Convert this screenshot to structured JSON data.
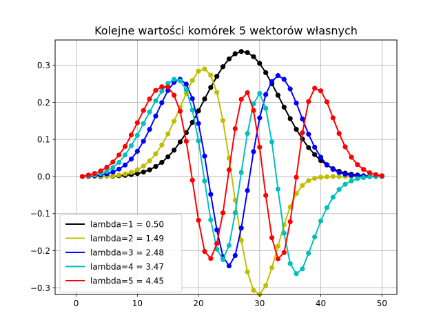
{
  "chart_data": {
    "type": "line",
    "title": "Kolejne wartości komórek 5 wektorów własnych",
    "xlabel": "",
    "ylabel": "",
    "xlim": [
      -3.45,
      52.45
    ],
    "ylim": [
      -0.318,
      0.368
    ],
    "xticks": [
      0,
      10,
      20,
      30,
      40,
      50
    ],
    "xtick_labels": [
      "0",
      "10",
      "20",
      "30",
      "40",
      "50"
    ],
    "yticks": [
      -0.3,
      -0.2,
      -0.1,
      0.0,
      0.1,
      0.2,
      0.3
    ],
    "ytick_labels": [
      "−0.3",
      "−0.2",
      "−0.1",
      "0.0",
      "0.1",
      "0.2",
      "0.3"
    ],
    "grid": true,
    "legend_position": "lower-left",
    "x": [
      1,
      2,
      3,
      4,
      5,
      6,
      7,
      8,
      9,
      10,
      11,
      12,
      13,
      14,
      15,
      16,
      17,
      18,
      19,
      20,
      21,
      22,
      23,
      24,
      25,
      26,
      27,
      28,
      29,
      30,
      31,
      32,
      33,
      34,
      35,
      36,
      37,
      38,
      39,
      40,
      41,
      42,
      43,
      44,
      45,
      46,
      47,
      48,
      49,
      50
    ],
    "series": [
      {
        "name": "lambda=1 = 0.50",
        "color": "#000000",
        "values": [
          0.0,
          0.0,
          0.0,
          0.0,
          0.001,
          0.001,
          0.002,
          0.003,
          0.005,
          0.008,
          0.012,
          0.018,
          0.027,
          0.038,
          0.053,
          0.071,
          0.093,
          0.118,
          0.146,
          0.177,
          0.209,
          0.24,
          0.27,
          0.296,
          0.317,
          0.331,
          0.337,
          0.334,
          0.323,
          0.305,
          0.28,
          0.25,
          0.219,
          0.187,
          0.156,
          0.127,
          0.101,
          0.078,
          0.059,
          0.043,
          0.031,
          0.021,
          0.014,
          0.009,
          0.006,
          0.004,
          0.002,
          0.001,
          0.0,
          0.0
        ]
      },
      {
        "name": "lambda=2 = 1.49",
        "color": "#bfbf00",
        "values": [
          0.0,
          0.0,
          0.0,
          0.001,
          0.001,
          0.002,
          0.004,
          0.007,
          0.011,
          0.018,
          0.028,
          0.042,
          0.061,
          0.085,
          0.115,
          0.149,
          0.186,
          0.224,
          0.259,
          0.284,
          0.29,
          0.273,
          0.227,
          0.151,
          0.05,
          -0.064,
          -0.172,
          -0.257,
          -0.307,
          -0.318,
          -0.294,
          -0.246,
          -0.188,
          -0.13,
          -0.082,
          -0.046,
          -0.024,
          -0.011,
          -0.005,
          -0.002,
          -0.001,
          0.0,
          0.0,
          0.0,
          0.0,
          0.0,
          0.0,
          0.0,
          0.0,
          0.0
        ],
        "raw_note": null
      },
      {
        "name": "lambda=3 = 2.48",
        "color": "#0000ff",
        "values": [
          0.0,
          0.001,
          0.002,
          0.004,
          0.007,
          0.012,
          0.02,
          0.031,
          0.047,
          0.068,
          0.095,
          0.127,
          0.163,
          0.199,
          0.232,
          0.254,
          0.262,
          0.249,
          0.21,
          0.143,
          0.055,
          -0.048,
          -0.144,
          -0.216,
          -0.241,
          -0.213,
          -0.139,
          -0.038,
          0.067,
          0.158,
          0.221,
          0.256,
          0.272,
          0.262,
          0.236,
          0.198,
          0.155,
          0.114,
          0.079,
          0.052,
          0.032,
          0.019,
          0.011,
          0.006,
          0.003,
          0.002,
          0.001,
          0.0,
          0.0,
          0.0
        ]
      },
      {
        "name": "lambda=4 = 3.47",
        "color": "#00bfbf",
        "values": [
          0.0,
          0.002,
          0.004,
          0.008,
          0.014,
          0.024,
          0.038,
          0.058,
          0.083,
          0.111,
          0.143,
          0.174,
          0.204,
          0.23,
          0.251,
          0.262,
          0.258,
          0.234,
          0.179,
          0.096,
          -0.012,
          -0.117,
          -0.196,
          -0.224,
          -0.186,
          -0.098,
          0.011,
          0.116,
          0.196,
          0.224,
          0.184,
          0.093,
          -0.034,
          -0.153,
          -0.235,
          -0.262,
          -0.249,
          -0.207,
          -0.163,
          -0.12,
          -0.084,
          -0.056,
          -0.035,
          -0.021,
          -0.012,
          -0.006,
          -0.003,
          -0.001,
          0.0,
          0.0
        ]
      },
      {
        "name": "lambda=5 = 4.45",
        "color": "#ff0000",
        "values": [
          0.0,
          0.004,
          0.008,
          0.015,
          0.025,
          0.039,
          0.058,
          0.081,
          0.112,
          0.145,
          0.178,
          0.209,
          0.232,
          0.242,
          0.241,
          0.219,
          0.176,
          0.095,
          -0.01,
          -0.118,
          -0.202,
          -0.221,
          -0.181,
          -0.098,
          0.018,
          0.129,
          0.208,
          0.226,
          0.178,
          0.079,
          -0.051,
          -0.165,
          -0.222,
          -0.205,
          -0.122,
          -0.002,
          0.118,
          0.202,
          0.238,
          0.231,
          0.201,
          0.158,
          0.116,
          0.08,
          0.052,
          0.032,
          0.019,
          0.01,
          0.005,
          0.002
        ]
      }
    ]
  }
}
